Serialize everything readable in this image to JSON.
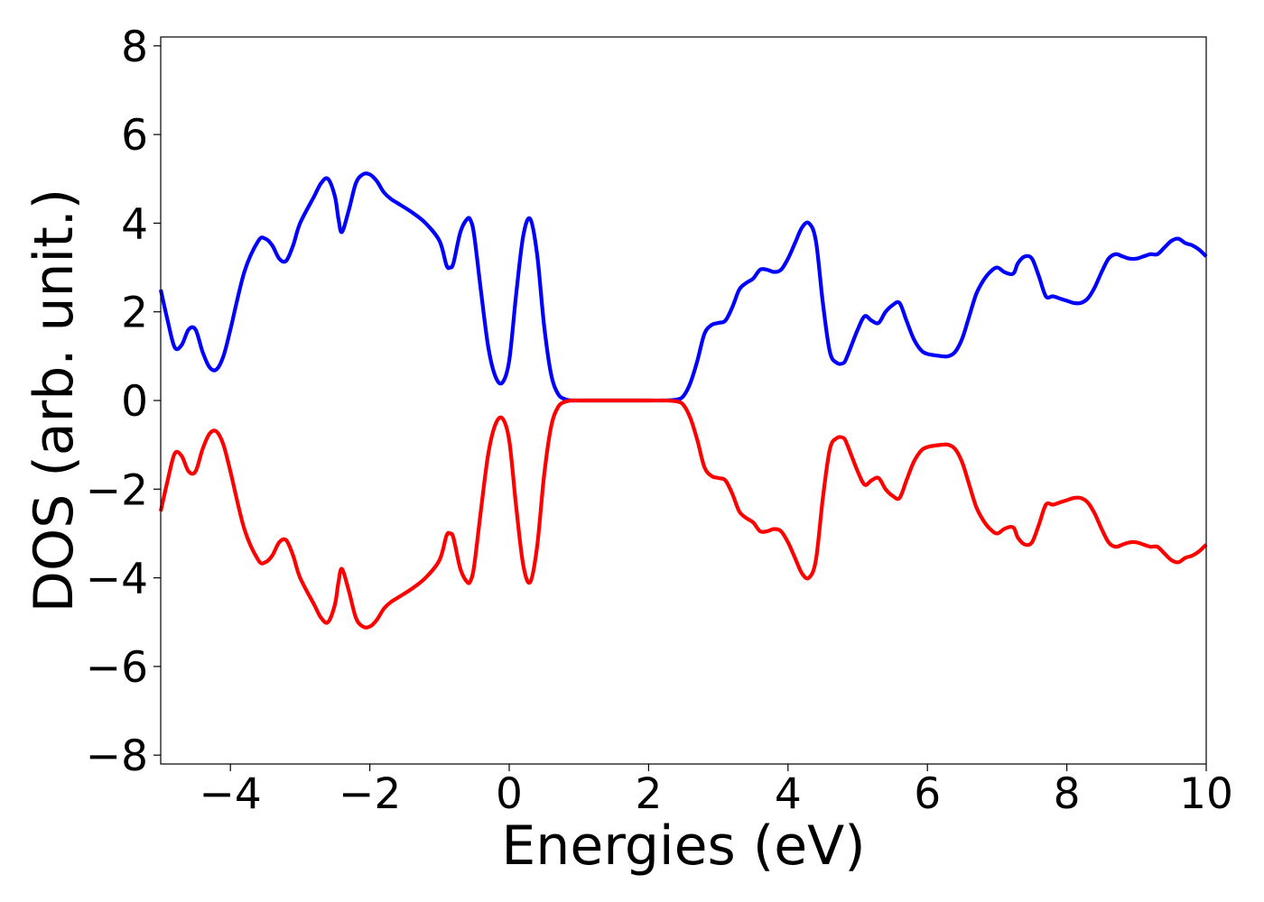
{
  "chart_data": {
    "type": "line",
    "title": "",
    "xlabel": "Energies (eV)",
    "ylabel": "DOS (arb. unit.)",
    "xlim": [
      -5,
      10
    ],
    "ylim": [
      -8.2,
      8.2
    ],
    "xticks": [
      -4,
      -2,
      0,
      2,
      4,
      6,
      8,
      10
    ],
    "yticks": [
      -8,
      -6,
      -4,
      -2,
      0,
      2,
      4,
      6,
      8
    ],
    "xtick_labels": [
      "−4",
      "−2",
      "0",
      "2",
      "4",
      "6",
      "8",
      "10"
    ],
    "ytick_labels": [
      "−8",
      "−6",
      "−4",
      "−2",
      "0",
      "2",
      "4",
      "6",
      "8"
    ],
    "grid": false,
    "legend": "none",
    "series": [
      {
        "color": "#0000ff",
        "x": [
          -5.0,
          -4.9,
          -4.8,
          -4.7,
          -4.6,
          -4.5,
          -4.4,
          -4.3,
          -4.2,
          -4.1,
          -4.0,
          -3.8,
          -3.6,
          -3.5,
          -3.4,
          -3.3,
          -3.2,
          -3.1,
          -3.0,
          -2.8,
          -2.7,
          -2.6,
          -2.5,
          -2.45,
          -2.4,
          -2.3,
          -2.2,
          -2.1,
          -2.0,
          -1.9,
          -1.8,
          -1.7,
          -1.6,
          -1.4,
          -1.2,
          -1.0,
          -0.9,
          -0.85,
          -0.8,
          -0.7,
          -0.6,
          -0.55,
          -0.5,
          -0.4,
          -0.3,
          -0.2,
          -0.1,
          0.0,
          0.1,
          0.2,
          0.3,
          0.4,
          0.5,
          0.6,
          0.7,
          0.8,
          0.9,
          1.0,
          1.2,
          1.5,
          2.0,
          2.2,
          2.4,
          2.5,
          2.6,
          2.7,
          2.8,
          2.9,
          3.0,
          3.1,
          3.2,
          3.3,
          3.4,
          3.5,
          3.6,
          3.7,
          3.8,
          3.9,
          4.0,
          4.1,
          4.2,
          4.3,
          4.4,
          4.5,
          4.6,
          4.7,
          4.8,
          4.85,
          4.9,
          5.0,
          5.1,
          5.2,
          5.3,
          5.4,
          5.5,
          5.6,
          5.7,
          5.8,
          5.9,
          6.0,
          6.2,
          6.3,
          6.4,
          6.5,
          6.6,
          6.7,
          6.8,
          6.9,
          7.0,
          7.1,
          7.2,
          7.25,
          7.3,
          7.4,
          7.5,
          7.6,
          7.7,
          7.8,
          7.9,
          8.0,
          8.1,
          8.2,
          8.3,
          8.4,
          8.5,
          8.6,
          8.7,
          8.8,
          8.9,
          9.0,
          9.1,
          9.2,
          9.3,
          9.4,
          9.5,
          9.6,
          9.7,
          9.8,
          9.9,
          10.0
        ],
        "y": [
          2.5,
          1.8,
          1.2,
          1.25,
          1.6,
          1.6,
          1.1,
          0.75,
          0.7,
          1.0,
          1.6,
          2.9,
          3.6,
          3.65,
          3.5,
          3.2,
          3.15,
          3.5,
          4.0,
          4.6,
          4.9,
          5.0,
          4.6,
          4.1,
          3.8,
          4.3,
          4.9,
          5.1,
          5.1,
          4.95,
          4.7,
          4.55,
          4.45,
          4.25,
          4.0,
          3.6,
          3.05,
          3.0,
          3.1,
          3.8,
          4.1,
          4.05,
          3.7,
          2.4,
          1.2,
          0.55,
          0.4,
          0.9,
          2.4,
          3.7,
          4.1,
          3.3,
          1.7,
          0.6,
          0.15,
          0.03,
          0.0,
          0.0,
          0.0,
          0.0,
          0.0,
          0.0,
          0.02,
          0.1,
          0.4,
          0.9,
          1.5,
          1.7,
          1.75,
          1.8,
          2.1,
          2.5,
          2.65,
          2.75,
          2.95,
          2.95,
          2.9,
          2.95,
          3.2,
          3.55,
          3.9,
          4.0,
          3.6,
          2.2,
          1.1,
          0.85,
          0.85,
          1.0,
          1.2,
          1.6,
          1.9,
          1.8,
          1.75,
          2.0,
          2.15,
          2.2,
          1.8,
          1.4,
          1.15,
          1.05,
          1.0,
          1.0,
          1.1,
          1.4,
          1.9,
          2.4,
          2.7,
          2.9,
          3.0,
          2.9,
          2.85,
          2.9,
          3.1,
          3.25,
          3.2,
          2.8,
          2.35,
          2.35,
          2.3,
          2.25,
          2.2,
          2.2,
          2.3,
          2.55,
          2.9,
          3.2,
          3.3,
          3.25,
          3.2,
          3.2,
          3.25,
          3.3,
          3.3,
          3.45,
          3.6,
          3.65,
          3.55,
          3.5,
          3.4,
          3.25
        ]
      },
      {
        "color": "#ff0000",
        "x": [
          -5.0,
          -4.9,
          -4.8,
          -4.7,
          -4.6,
          -4.5,
          -4.4,
          -4.3,
          -4.2,
          -4.1,
          -4.0,
          -3.8,
          -3.6,
          -3.5,
          -3.4,
          -3.3,
          -3.2,
          -3.1,
          -3.0,
          -2.8,
          -2.7,
          -2.6,
          -2.5,
          -2.45,
          -2.4,
          -2.3,
          -2.2,
          -2.1,
          -2.0,
          -1.9,
          -1.8,
          -1.7,
          -1.6,
          -1.4,
          -1.2,
          -1.0,
          -0.9,
          -0.85,
          -0.8,
          -0.7,
          -0.6,
          -0.55,
          -0.5,
          -0.4,
          -0.3,
          -0.2,
          -0.1,
          0.0,
          0.1,
          0.2,
          0.3,
          0.4,
          0.5,
          0.6,
          0.7,
          0.8,
          0.9,
          1.0,
          1.2,
          1.5,
          2.0,
          2.2,
          2.4,
          2.5,
          2.6,
          2.7,
          2.8,
          2.9,
          3.0,
          3.1,
          3.2,
          3.3,
          3.4,
          3.5,
          3.6,
          3.7,
          3.8,
          3.9,
          4.0,
          4.1,
          4.2,
          4.3,
          4.4,
          4.5,
          4.6,
          4.7,
          4.8,
          4.85,
          4.9,
          5.0,
          5.1,
          5.2,
          5.3,
          5.4,
          5.5,
          5.6,
          5.7,
          5.8,
          5.9,
          6.0,
          6.2,
          6.3,
          6.4,
          6.5,
          6.6,
          6.7,
          6.8,
          6.9,
          7.0,
          7.1,
          7.2,
          7.25,
          7.3,
          7.4,
          7.5,
          7.6,
          7.7,
          7.8,
          7.9,
          8.0,
          8.1,
          8.2,
          8.3,
          8.4,
          8.5,
          8.6,
          8.7,
          8.8,
          8.9,
          9.0,
          9.1,
          9.2,
          9.3,
          9.4,
          9.5,
          9.6,
          9.7,
          9.8,
          9.9,
          10.0
        ],
        "y": [
          -2.5,
          -1.8,
          -1.2,
          -1.25,
          -1.6,
          -1.6,
          -1.1,
          -0.75,
          -0.7,
          -1.0,
          -1.6,
          -2.9,
          -3.6,
          -3.65,
          -3.5,
          -3.2,
          -3.15,
          -3.5,
          -4.0,
          -4.6,
          -4.9,
          -5.0,
          -4.6,
          -4.1,
          -3.8,
          -4.3,
          -4.9,
          -5.1,
          -5.1,
          -4.95,
          -4.7,
          -4.55,
          -4.45,
          -4.25,
          -4.0,
          -3.6,
          -3.05,
          -3.0,
          -3.1,
          -3.8,
          -4.1,
          -4.05,
          -3.7,
          -2.4,
          -1.2,
          -0.55,
          -0.4,
          -0.9,
          -2.4,
          -3.7,
          -4.1,
          -3.3,
          -1.7,
          -0.6,
          -0.15,
          -0.03,
          0.0,
          0.0,
          0.0,
          0.0,
          0.0,
          0.0,
          -0.02,
          -0.1,
          -0.4,
          -0.9,
          -1.5,
          -1.7,
          -1.75,
          -1.8,
          -2.1,
          -2.5,
          -2.65,
          -2.75,
          -2.95,
          -2.95,
          -2.9,
          -2.95,
          -3.2,
          -3.55,
          -3.9,
          -4.0,
          -3.6,
          -2.2,
          -1.1,
          -0.85,
          -0.85,
          -1.0,
          -1.2,
          -1.6,
          -1.9,
          -1.8,
          -1.75,
          -2.0,
          -2.15,
          -2.2,
          -1.8,
          -1.4,
          -1.15,
          -1.05,
          -1.0,
          -1.0,
          -1.1,
          -1.4,
          -1.9,
          -2.4,
          -2.7,
          -2.9,
          -3.0,
          -2.9,
          -2.85,
          -2.9,
          -3.1,
          -3.25,
          -3.2,
          -2.8,
          -2.35,
          -2.35,
          -2.3,
          -2.25,
          -2.2,
          -2.2,
          -2.3,
          -2.55,
          -2.9,
          -3.2,
          -3.3,
          -3.25,
          -3.2,
          -3.2,
          -3.25,
          -3.3,
          -3.3,
          -3.45,
          -3.6,
          -3.65,
          -3.55,
          -3.5,
          -3.4,
          -3.25
        ]
      }
    ]
  }
}
